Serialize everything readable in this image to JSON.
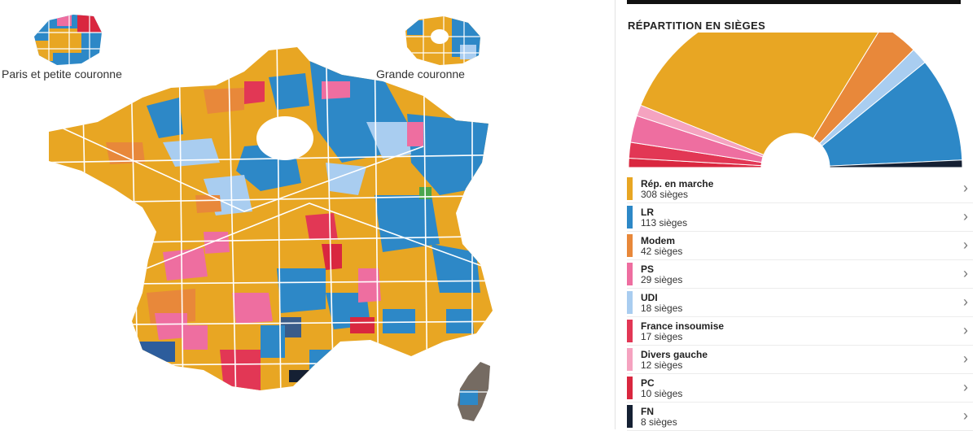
{
  "map": {
    "labels": {
      "paris": "Paris et petite couronne",
      "grande": "Grande couronne"
    },
    "colors": {
      "background": "#ffffff",
      "borders": "#ffffff"
    }
  },
  "panel": {
    "title": "RÉPARTITION EN SIÈGES",
    "parties": [
      {
        "name": "Rép. en marche",
        "seats_label": "308 sièges",
        "seats": 308,
        "color": "#e8a623",
        "icon": "chevron-right-icon"
      },
      {
        "name": "LR",
        "seats_label": "113 sièges",
        "seats": 113,
        "color": "#2d88c7",
        "icon": "chevron-right-icon"
      },
      {
        "name": "Modem",
        "seats_label": "42 sièges",
        "seats": 42,
        "color": "#e8883a",
        "icon": "chevron-right-icon"
      },
      {
        "name": "PS",
        "seats_label": "29 sièges",
        "seats": 29,
        "color": "#ee6ea0",
        "icon": "chevron-right-icon"
      },
      {
        "name": "UDI",
        "seats_label": "18 sièges",
        "seats": 18,
        "color": "#a9cdf0",
        "icon": "chevron-right-icon"
      },
      {
        "name": "France insoumise",
        "seats_label": "17 sièges",
        "seats": 17,
        "color": "#e23755",
        "icon": "chevron-right-icon"
      },
      {
        "name": "Divers gauche",
        "seats_label": "12 sièges",
        "seats": 12,
        "color": "#f5a3c0",
        "icon": "chevron-right-icon"
      },
      {
        "name": "PC",
        "seats_label": "10 sièges",
        "seats": 10,
        "color": "#d9273f",
        "icon": "chevron-right-icon"
      },
      {
        "name": "FN",
        "seats_label": "8 sièges",
        "seats": 8,
        "color": "#152033",
        "icon": "chevron-right-icon"
      }
    ]
  }
}
